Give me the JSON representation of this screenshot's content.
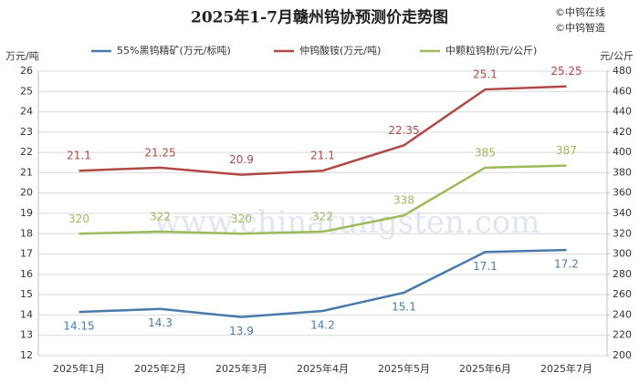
{
  "chart_data": {
    "type": "line",
    "title": "2025年1-7月赣州钨协预测价走势图",
    "credits": [
      "©中钨在线",
      "©中钨智造"
    ],
    "watermark": "www.chinatungsten.com",
    "ylabel": "万元/吨",
    "y2label": "元/公斤",
    "categories": [
      "2025年1月",
      "2025年2月",
      "2025年3月",
      "2025年4月",
      "2025年5月",
      "2025年6月",
      "2025年7月"
    ],
    "series": [
      {
        "name": "55%黑钨精矿(万元/标吨)",
        "color": "#4a7aab",
        "values": [
          14.15,
          14.3,
          13.9,
          14.2,
          15.1,
          17.1,
          17.2
        ]
      },
      {
        "name": "仲钨酸铵(万元/吨)",
        "color": "#b04846",
        "values": [
          21.1,
          21.25,
          20.9,
          21.1,
          22.35,
          25.1,
          25.25
        ]
      },
      {
        "name": "中颗粒钨粉(元/公斤)",
        "color": "#9bbb59",
        "axis": "y2",
        "values": [
          320,
          322,
          320,
          322,
          338,
          385,
          387
        ]
      }
    ],
    "ylim": [
      12,
      26
    ],
    "yticks": [
      12,
      13,
      14,
      15,
      16,
      17,
      18,
      19,
      20,
      21,
      22,
      23,
      24,
      25,
      26
    ],
    "y2lim": [
      200,
      480
    ],
    "y2ticks": [
      200,
      220,
      240,
      260,
      280,
      300,
      320,
      340,
      360,
      380,
      400,
      420,
      440,
      460,
      480
    ],
    "grid": true
  }
}
